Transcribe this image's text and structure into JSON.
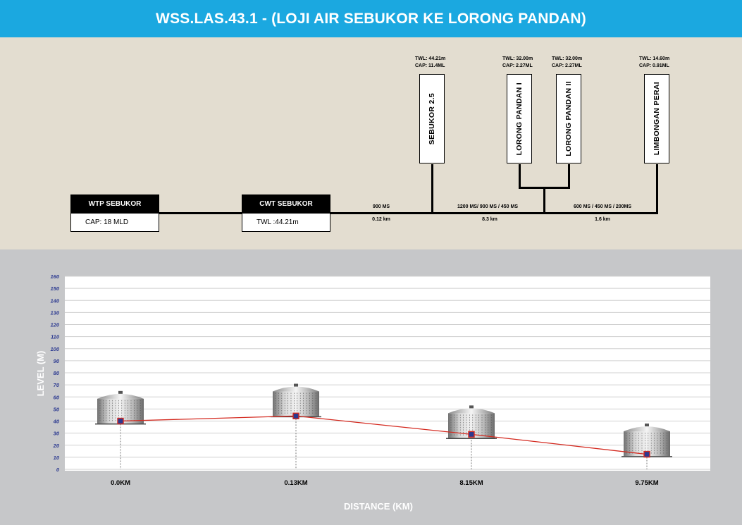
{
  "header": {
    "title": "WSS.LAS.43.1 - (LOJI AIR SEBUKOR KE LORONG PANDAN)"
  },
  "schematic": {
    "wtp": {
      "name": "WTP SEBUKOR",
      "value": "CAP: 18 MLD"
    },
    "cwt": {
      "name": "CWT SEBUKOR",
      "value": "TWL :44.21m"
    },
    "tanks": [
      {
        "name": "SEBUKOR 2.5",
        "twl": "TWL: 44.21m",
        "cap": "CAP: 11.4ML"
      },
      {
        "name": "LORONG PANDAN I",
        "twl": "TWL: 32.00m",
        "cap": "CAP: 2.27ML"
      },
      {
        "name": "LORONG PANDAN II",
        "twl": "TWL: 32.00m",
        "cap": "CAP: 2.27ML"
      },
      {
        "name": "LIMBONGAN PERAI",
        "twl": "TWL: 14.60m",
        "cap": "CAP: 0.91ML"
      }
    ],
    "pipes": [
      {
        "spec": "900 MS",
        "length": "0.12 km"
      },
      {
        "spec": "1200 MS/ 900 MS / 450 MS",
        "length": "8.3 km"
      },
      {
        "spec": "600 MS / 450 MS / 200MS",
        "length": "1.6 km"
      }
    ]
  },
  "chart_data": {
    "type": "line",
    "title": "",
    "xlabel": "DISTANCE (KM)",
    "ylabel": "LEVEL (M)",
    "ylim": [
      0,
      160
    ],
    "yticks": [
      "0",
      "10",
      "20",
      "30",
      "40",
      "50",
      "60",
      "70",
      "80",
      "90",
      "100",
      "110",
      "120",
      "130",
      "140",
      "150",
      "160"
    ],
    "categories": [
      "0.0KM",
      "0.13KM",
      "8.15KM",
      "9.75KM"
    ],
    "series": [
      {
        "name": "Level",
        "values": [
          40,
          44.21,
          29,
          12.5
        ]
      }
    ],
    "tank_tops": [
      62,
      68,
      50,
      35
    ],
    "colors": {
      "line": "#d42a20",
      "marker_fill": "#2b3990",
      "marker_edge": "#d42a20",
      "ytick_text": "#2b3990"
    }
  }
}
